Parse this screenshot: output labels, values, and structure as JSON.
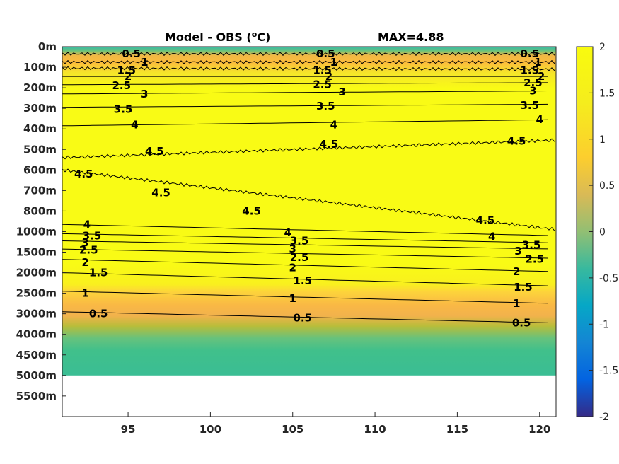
{
  "chart_data": {
    "type": "heatmap",
    "title": {
      "main": "Model - OBS (",
      "superscript": "o",
      "unit": "C)",
      "max_text": "MAX=4.88"
    },
    "x_ticks": [
      "95",
      "100",
      "105",
      "110",
      "115",
      "120"
    ],
    "x_tick_values": [
      95,
      100,
      105,
      110,
      115,
      120
    ],
    "xlim": [
      91,
      121
    ],
    "y_ticks": [
      "0m",
      "100m",
      "200m",
      "300m",
      "400m",
      "500m",
      "600m",
      "700m",
      "800m",
      "1000m",
      "1500m",
      "2000m",
      "2500m",
      "3000m",
      "4000m",
      "4500m",
      "5000m",
      "5500m"
    ],
    "y_note": "depth axis is a stretched (non-linear) level index; each label marks one level",
    "data_bottom_level": "5000m",
    "colorbar": {
      "ticks": [
        "2",
        "1.5",
        "1",
        "0.5",
        "0",
        "-0.5",
        "-1",
        "-1.5",
        "-2"
      ],
      "tick_values": [
        2,
        1.5,
        1,
        0.5,
        0,
        -0.5,
        -1,
        -1.5,
        -2
      ],
      "range": [
        -2,
        2
      ],
      "colormap": "parula"
    },
    "contour_levels": [
      0.5,
      1,
      1.5,
      2,
      2.5,
      3,
      3.5,
      4,
      4.5
    ],
    "contour_labels": [
      {
        "text": "0.5",
        "x": 91.5,
        "level": 0.15
      },
      {
        "text": "1",
        "x": 91.5,
        "level": 0.55
      },
      {
        "text": "1.5",
        "x": 91.5,
        "level": 0.95
      },
      {
        "text": "2",
        "x": 91.5,
        "level": 0.85
      },
      {
        "text": "2.5",
        "x": 91.5,
        "level": 1.85
      },
      {
        "text": "3",
        "x": 91.5,
        "level": 2.35
      },
      {
        "text": "3.5",
        "x": 91.5,
        "level": 3.0
      },
      {
        "text": "4",
        "x": 91.5,
        "level": 3.9
      },
      {
        "text": "4.5",
        "x": 91.5,
        "level": 5.1
      },
      {
        "text": "4.5",
        "x": 91.5,
        "level": 6.1
      },
      {
        "text": "4.5",
        "x": 91.5,
        "level": 7.0
      },
      {
        "text": "4.5",
        "x": 91.5,
        "level": 7.95
      },
      {
        "text": "4.5",
        "x": 91.5,
        "level": 8.4
      },
      {
        "text": "4",
        "x": 91.5,
        "level": 8.65
      },
      {
        "text": "3.5",
        "x": 91.5,
        "level": 9.2
      },
      {
        "text": "3",
        "x": 91.5,
        "level": 9.55
      },
      {
        "text": "2.5",
        "x": 91.5,
        "level": 9.9
      },
      {
        "text": "2",
        "x": 91.5,
        "level": 10.45
      },
      {
        "text": "1.5",
        "x": 91.5,
        "level": 11.0
      },
      {
        "text": "1",
        "x": 91.5,
        "level": 11.9
      },
      {
        "text": "0.5",
        "x": 91.5,
        "level": 12.85
      }
    ],
    "label_placements": [
      {
        "text": "0.5",
        "x": 95.2,
        "level": 0.35
      },
      {
        "text": "1",
        "x": 96.0,
        "level": 0.75
      },
      {
        "text": "1.5",
        "x": 94.9,
        "level": 1.15
      },
      {
        "text": "2",
        "x": 95.0,
        "level": 1.45
      },
      {
        "text": "2.5",
        "x": 94.6,
        "level": 1.9
      },
      {
        "text": "3",
        "x": 96.0,
        "level": 2.3
      },
      {
        "text": "3.5",
        "x": 94.7,
        "level": 3.05
      },
      {
        "text": "4",
        "x": 95.4,
        "level": 3.8
      },
      {
        "text": "4.5",
        "x": 96.6,
        "level": 5.1
      },
      {
        "text": "4.5",
        "x": 92.3,
        "level": 6.2
      },
      {
        "text": "4.5",
        "x": 97.0,
        "level": 7.1
      },
      {
        "text": "4.5",
        "x": 102.5,
        "level": 8.0
      },
      {
        "text": "4",
        "x": 92.5,
        "level": 8.65
      },
      {
        "text": "3.5",
        "x": 92.8,
        "level": 9.2
      },
      {
        "text": "3",
        "x": 92.4,
        "level": 9.55
      },
      {
        "text": "2.5",
        "x": 92.6,
        "level": 9.9
      },
      {
        "text": "2",
        "x": 92.4,
        "level": 10.5
      },
      {
        "text": "1.5",
        "x": 93.2,
        "level": 11.0
      },
      {
        "text": "1",
        "x": 92.4,
        "level": 12.0
      },
      {
        "text": "0.5",
        "x": 93.2,
        "level": 13.0
      },
      {
        "text": "0.5",
        "x": 107.0,
        "level": 0.35
      },
      {
        "text": "1",
        "x": 107.5,
        "level": 0.75
      },
      {
        "text": "1.5",
        "x": 106.8,
        "level": 1.15
      },
      {
        "text": "2",
        "x": 107.2,
        "level": 1.45
      },
      {
        "text": "2.5",
        "x": 106.8,
        "level": 1.85
      },
      {
        "text": "3",
        "x": 108.0,
        "level": 2.2
      },
      {
        "text": "3.5",
        "x": 107.0,
        "level": 2.9
      },
      {
        "text": "4",
        "x": 107.5,
        "level": 3.8
      },
      {
        "text": "4.5",
        "x": 107.2,
        "level": 4.75
      },
      {
        "text": "4.5",
        "x": 116.7,
        "level": 8.45
      },
      {
        "text": "4",
        "x": 104.7,
        "level": 9.05
      },
      {
        "text": "3.5",
        "x": 105.4,
        "level": 9.45
      },
      {
        "text": "3",
        "x": 105.0,
        "level": 9.85
      },
      {
        "text": "2.5",
        "x": 105.4,
        "level": 10.25
      },
      {
        "text": "2",
        "x": 105.0,
        "level": 10.75
      },
      {
        "text": "1.5",
        "x": 105.6,
        "level": 11.4
      },
      {
        "text": "1",
        "x": 105.0,
        "level": 12.25
      },
      {
        "text": "0.5",
        "x": 105.6,
        "level": 13.2
      },
      {
        "text": "0.5",
        "x": 119.4,
        "level": 0.35
      },
      {
        "text": "1",
        "x": 119.9,
        "level": 0.75
      },
      {
        "text": "1.5",
        "x": 119.4,
        "level": 1.15
      },
      {
        "text": "2",
        "x": 120.1,
        "level": 1.45
      },
      {
        "text": "2.5",
        "x": 119.6,
        "level": 1.75
      },
      {
        "text": "3",
        "x": 119.6,
        "level": 2.15
      },
      {
        "text": "3.5",
        "x": 119.4,
        "level": 2.85
      },
      {
        "text": "4",
        "x": 120.0,
        "level": 3.55
      },
      {
        "text": "4.5",
        "x": 118.6,
        "level": 4.6
      },
      {
        "text": "4",
        "x": 117.1,
        "level": 9.25
      },
      {
        "text": "3.5",
        "x": 119.5,
        "level": 9.65
      },
      {
        "text": "3",
        "x": 118.7,
        "level": 9.95
      },
      {
        "text": "2.5",
        "x": 119.7,
        "level": 10.35
      },
      {
        "text": "2",
        "x": 118.6,
        "level": 10.95
      },
      {
        "text": "1.5",
        "x": 119.0,
        "level": 11.7
      },
      {
        "text": "1",
        "x": 118.6,
        "level": 12.5
      },
      {
        "text": "0.5",
        "x": 118.9,
        "level": 13.45
      }
    ],
    "grid": false
  }
}
